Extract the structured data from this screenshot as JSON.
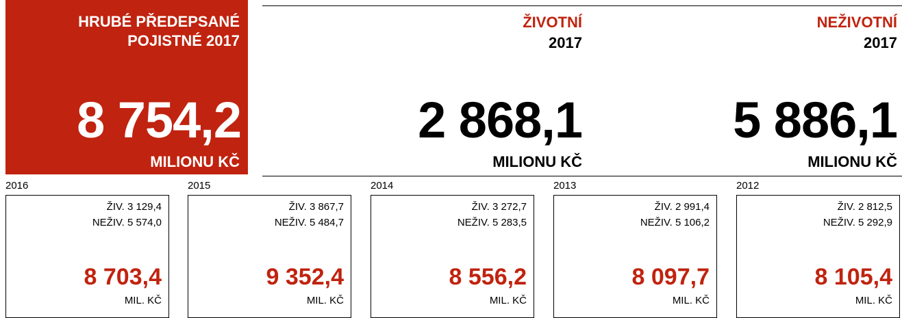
{
  "hero": {
    "title": "HRUBÉ PŘEDEPSANÉ POJISTNÉ 2017",
    "value": "8 754,2",
    "unit": "MILIONU KČ"
  },
  "segments": [
    {
      "name": "ŽIVOTNÍ",
      "year": "2017",
      "value": "2 868,1",
      "unit": "MILIONU KČ"
    },
    {
      "name": "NEŽIVOTNÍ",
      "year": "2017",
      "value": "5 886,1",
      "unit": "MILIONU KČ"
    }
  ],
  "years": [
    {
      "year": "2016",
      "life": "ŽIV. 3 129,4",
      "nonlife": "NEŽIV. 5 574,0",
      "total": "8 703,4",
      "unit": "MIL. KČ"
    },
    {
      "year": "2015",
      "life": "ŽIV. 3 867,7",
      "nonlife": "NEŽIV. 5 484,7",
      "total": "9 352,4",
      "unit": "MIL. KČ"
    },
    {
      "year": "2014",
      "life": "ŽIV. 3 272,7",
      "nonlife": "NEŽIV. 5 283,5",
      "total": "8 556,2",
      "unit": "MIL. KČ"
    },
    {
      "year": "2013",
      "life": "ŽIV. 2 991,4",
      "nonlife": "NEŽIV. 5 106,2",
      "total": "8 097,7",
      "unit": "MIL. KČ"
    },
    {
      "year": "2012",
      "life": "ŽIV. 2 812,5",
      "nonlife": "NEŽIV. 5 292,9",
      "total": "8 105,4",
      "unit": "MIL. KČ"
    }
  ]
}
